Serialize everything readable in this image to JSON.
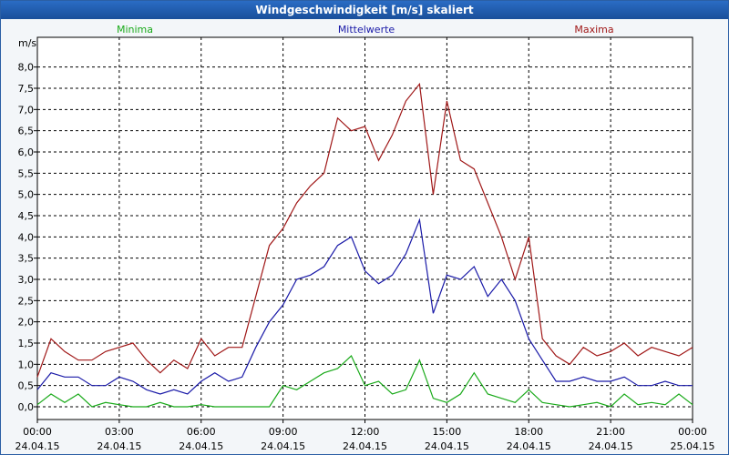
{
  "colors": {
    "titlebar": "#1f5cb0",
    "grid": "#000000",
    "minima": "#1aaa1a",
    "mittelwerte": "#1a1aa8",
    "maxima": "#a01818"
  },
  "chart_data": {
    "type": "line",
    "title": "Windgeschwindigkeit [m/s] skaliert",
    "ylabel": "m/s",
    "ylim": [
      -0.3,
      8.7
    ],
    "yticks": [
      "0,0",
      "0,5",
      "1,0",
      "1,5",
      "2,0",
      "2,5",
      "3,0",
      "3,5",
      "4,0",
      "4,5",
      "5,0",
      "5,5",
      "6,0",
      "6,5",
      "7,0",
      "7,5",
      "8,0"
    ],
    "ytick_values": [
      0,
      0.5,
      1,
      1.5,
      2,
      2.5,
      3,
      3.5,
      4,
      4.5,
      5,
      5.5,
      6,
      6.5,
      7,
      7.5,
      8
    ],
    "xlim": [
      0,
      24
    ],
    "xticks": [
      {
        "time": "00:00",
        "date": "24.04.15"
      },
      {
        "time": "03:00",
        "date": "24.04.15"
      },
      {
        "time": "06:00",
        "date": "24.04.15"
      },
      {
        "time": "09:00",
        "date": "24.04.15"
      },
      {
        "time": "12:00",
        "date": "24.04.15"
      },
      {
        "time": "15:00",
        "date": "24.04.15"
      },
      {
        "time": "18:00",
        "date": "24.04.15"
      },
      {
        "time": "21:00",
        "date": "24.04.15"
      },
      {
        "time": "00:00",
        "date": "25.04.15"
      }
    ],
    "grid": true,
    "legend_position": "top",
    "series": [
      {
        "name": "Minima",
        "color": "#1aaa1a",
        "x": [
          0,
          0.5,
          1,
          1.5,
          2,
          2.5,
          3,
          3.5,
          4,
          4.5,
          5,
          5.5,
          6,
          6.5,
          7,
          7.5,
          8,
          8.5,
          9,
          9.5,
          10,
          10.5,
          11,
          11.5,
          12,
          12.5,
          13,
          13.5,
          14,
          14.5,
          15,
          15.5,
          16,
          16.5,
          17,
          17.5,
          18,
          18.5,
          19,
          19.5,
          20,
          20.5,
          21,
          21.5,
          22,
          22.5,
          23,
          23.5,
          24
        ],
        "values": [
          0.05,
          0.3,
          0.1,
          0.3,
          0,
          0.1,
          0.05,
          0,
          0,
          0.1,
          0,
          0,
          0.05,
          0,
          0,
          0,
          0,
          0,
          0.5,
          0.4,
          0.6,
          0.8,
          0.9,
          1.2,
          0.5,
          0.6,
          0.3,
          0.4,
          1.1,
          0.2,
          0.1,
          0.3,
          0.8,
          0.3,
          0.2,
          0.1,
          0.4,
          0.1,
          0.05,
          0,
          0.05,
          0.1,
          0,
          0.3,
          0.05,
          0.1,
          0.05,
          0.3,
          0.05
        ]
      },
      {
        "name": "Mittelwerte",
        "color": "#1a1aa8",
        "x": [
          0,
          0.5,
          1,
          1.5,
          2,
          2.5,
          3,
          3.5,
          4,
          4.5,
          5,
          5.5,
          6,
          6.5,
          7,
          7.5,
          8,
          8.5,
          9,
          9.5,
          10,
          10.5,
          11,
          11.5,
          12,
          12.5,
          13,
          13.5,
          14,
          14.5,
          15,
          15.5,
          16,
          16.5,
          17,
          17.5,
          18,
          18.5,
          19,
          19.5,
          20,
          20.5,
          21,
          21.5,
          22,
          22.5,
          23,
          23.5,
          24
        ],
        "values": [
          0.4,
          0.8,
          0.7,
          0.7,
          0.5,
          0.5,
          0.7,
          0.6,
          0.4,
          0.3,
          0.4,
          0.3,
          0.6,
          0.8,
          0.6,
          0.7,
          1.4,
          2.0,
          2.4,
          3.0,
          3.1,
          3.3,
          3.8,
          4.0,
          3.2,
          2.9,
          3.1,
          3.6,
          4.4,
          2.2,
          3.1,
          3.0,
          3.3,
          2.6,
          3.0,
          2.5,
          1.6,
          1.1,
          0.6,
          0.6,
          0.7,
          0.6,
          0.6,
          0.7,
          0.5,
          0.5,
          0.6,
          0.5,
          0.5
        ]
      },
      {
        "name": "Maxima",
        "color": "#a01818",
        "x": [
          0,
          0.5,
          1,
          1.5,
          2,
          2.5,
          3,
          3.5,
          4,
          4.5,
          5,
          5.5,
          6,
          6.5,
          7,
          7.5,
          8,
          8.5,
          9,
          9.5,
          10,
          10.5,
          11,
          11.5,
          12,
          12.5,
          13,
          13.5,
          14,
          14.5,
          15,
          15.5,
          16,
          16.5,
          17,
          17.5,
          18,
          18.5,
          19,
          19.5,
          20,
          20.5,
          21,
          21.5,
          22,
          22.5,
          23,
          23.5,
          24
        ],
        "values": [
          0.7,
          1.6,
          1.3,
          1.1,
          1.1,
          1.3,
          1.4,
          1.5,
          1.1,
          0.8,
          1.1,
          0.9,
          1.6,
          1.2,
          1.4,
          1.4,
          2.6,
          3.8,
          4.2,
          4.8,
          5.2,
          5.5,
          6.8,
          6.5,
          6.6,
          5.8,
          6.4,
          7.2,
          7.6,
          5.0,
          7.2,
          5.8,
          5.6,
          4.8,
          4.0,
          3.0,
          4.0,
          1.6,
          1.2,
          1.0,
          1.4,
          1.2,
          1.3,
          1.5,
          1.2,
          1.4,
          1.3,
          1.2,
          1.4
        ]
      }
    ]
  }
}
